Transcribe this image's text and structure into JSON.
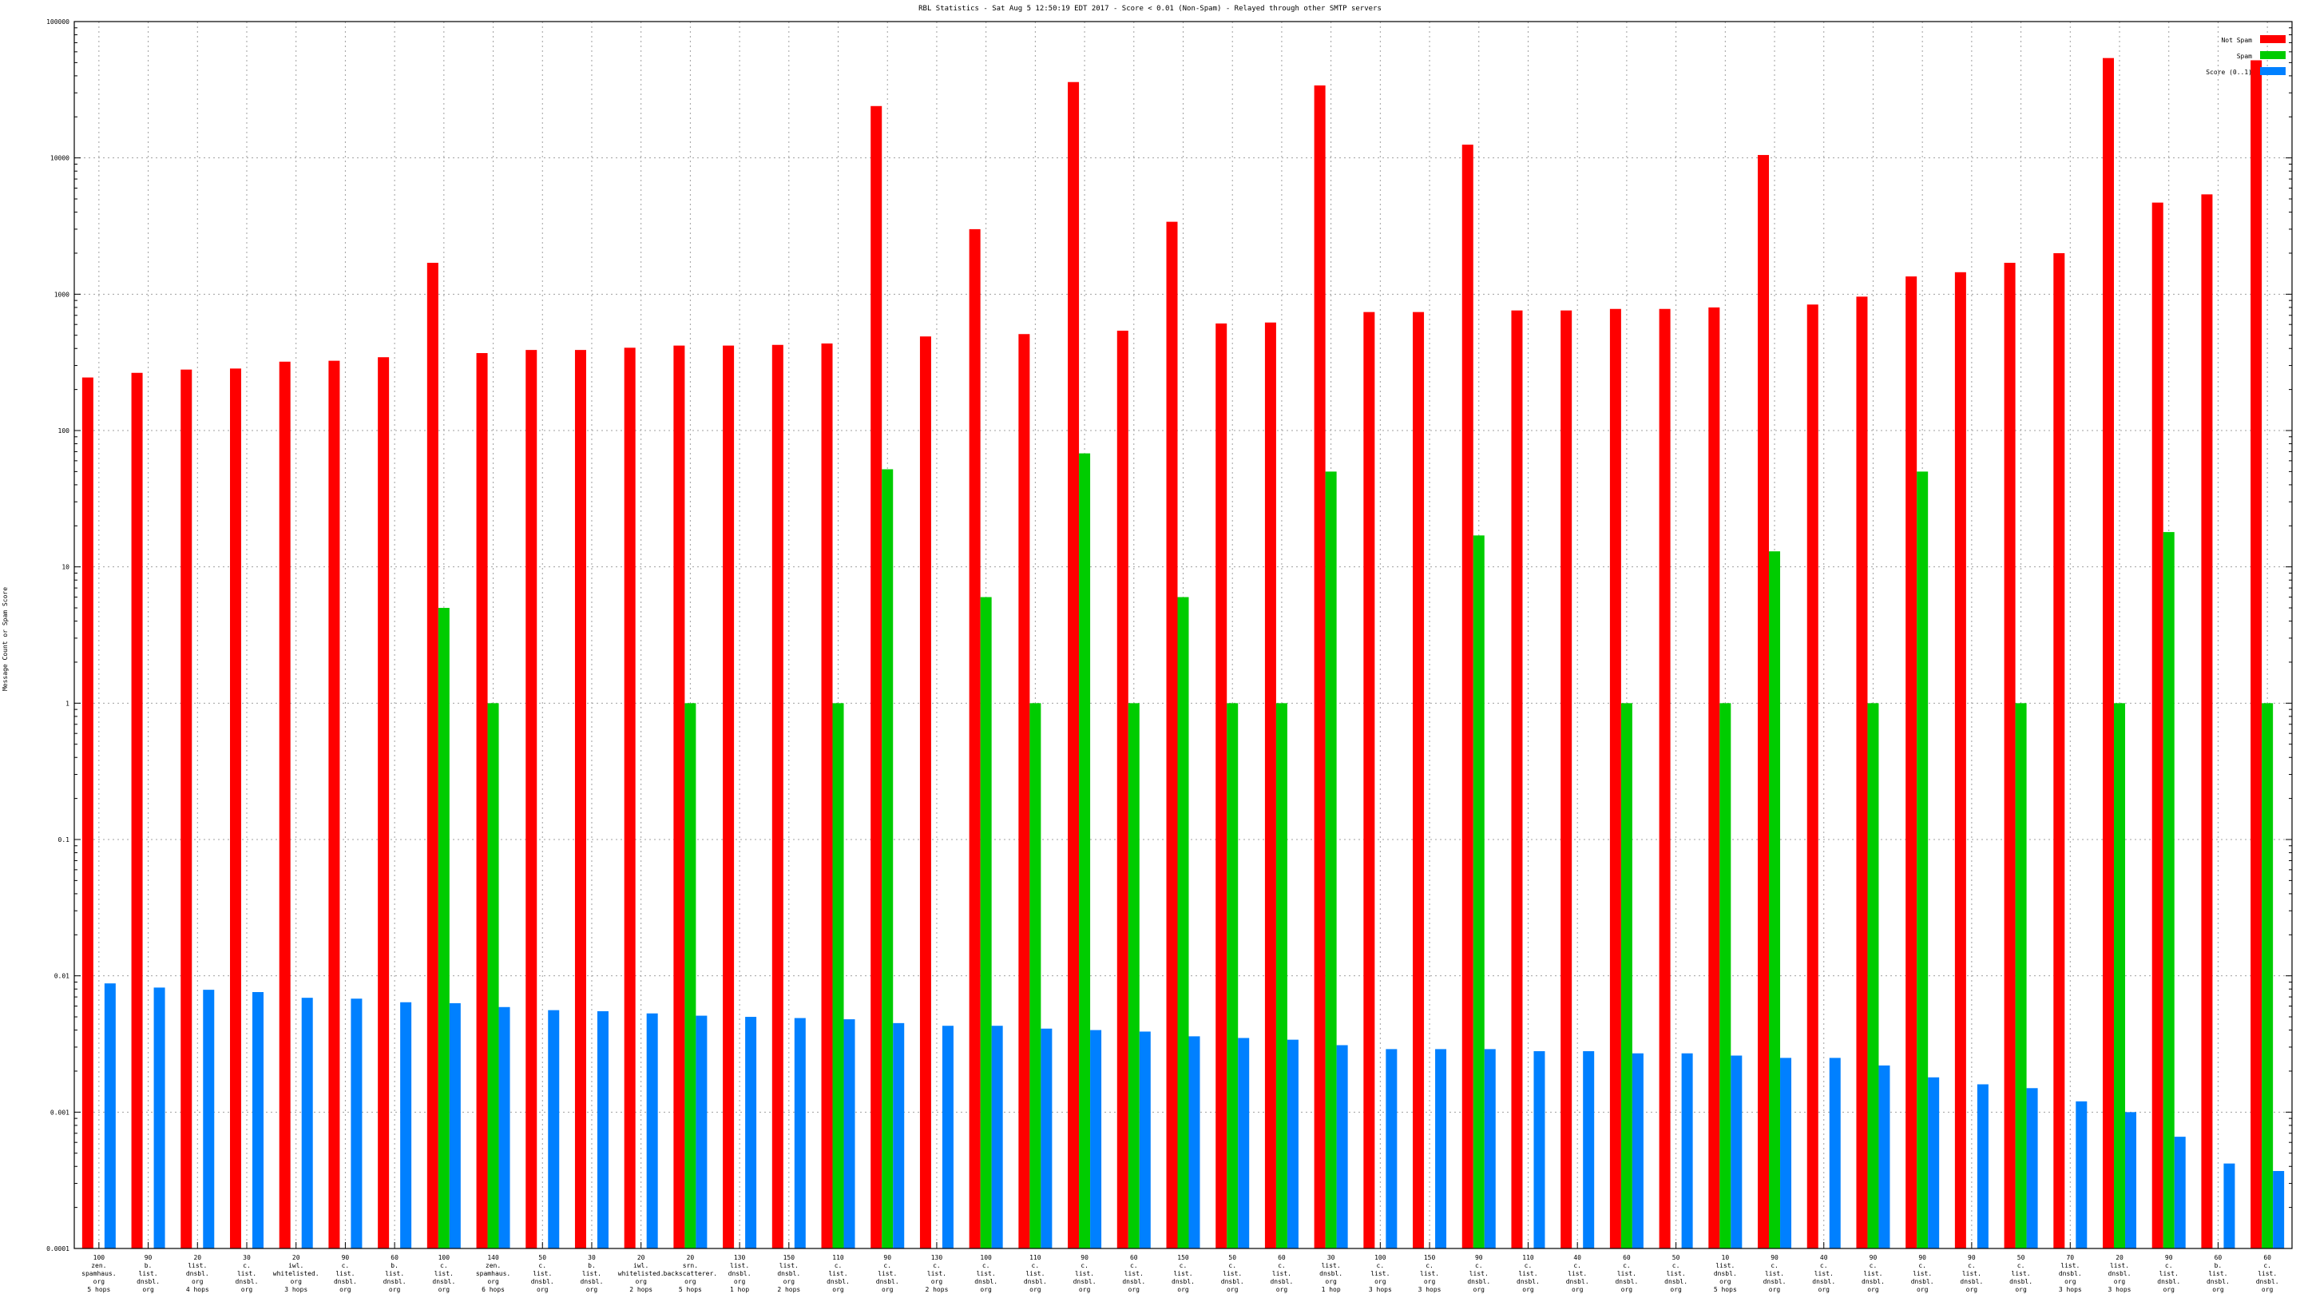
{
  "chart_data": {
    "type": "bar",
    "title": "RBL Statistics - Sat Aug  5 12:50:19 EDT 2017 - Score < 0.01 (Non-Spam) - Relayed through other SMTP servers",
    "ylabel": "Message Count or Spam Score",
    "xlabel": "",
    "yscale": "log",
    "ylim": [
      0.0001,
      100000
    ],
    "yticks": [
      "0.0001",
      "0.001",
      "0.01",
      "0.1",
      "1",
      "10",
      "100",
      "1000",
      "10000",
      "100000"
    ],
    "grid": true,
    "legend_position": "top-right",
    "categories": [
      [
        "100",
        "zen.",
        "spamhaus.",
        "org",
        "5 hops"
      ],
      [
        "90",
        "b.",
        "list.",
        "dnsbl.",
        "org",
        "4 hops"
      ],
      [
        "20",
        "list.",
        "dnsbl.",
        "org",
        "4 hops"
      ],
      [
        "30",
        "c.",
        "list.",
        "dnsbl.",
        "org",
        "3 hops"
      ],
      [
        "20",
        "iwl.",
        "whitelisted.",
        "org",
        "3 hops"
      ],
      [
        "90",
        "c.",
        "list.",
        "dnsbl.",
        "org",
        "3 hops"
      ],
      [
        "60",
        "b.",
        "list.",
        "dnsbl.",
        "org",
        "1 hop"
      ],
      [
        "100",
        "c.",
        "list.",
        "dnsbl.",
        "org",
        "2 hops"
      ],
      [
        "140",
        "zen.",
        "spamhaus.",
        "org",
        "6 hops"
      ],
      [
        "50",
        "c.",
        "list.",
        "dnsbl.",
        "org",
        "3 hops"
      ],
      [
        "30",
        "b.",
        "list.",
        "dnsbl.",
        "org",
        "3 hops"
      ],
      [
        "20",
        "iwl.",
        "whitelisted.",
        "org",
        "2 hops"
      ],
      [
        "20",
        "srn.",
        "backscatterer.",
        "org",
        "5 hops"
      ],
      [
        "130",
        "list.",
        "dnsbl.",
        "org",
        "1 hop"
      ],
      [
        "150",
        "list.",
        "dnsbl.",
        "org",
        "2 hops"
      ],
      [
        "110",
        "c.",
        "list.",
        "dnsbl.",
        "org",
        "3 hops"
      ],
      [
        "90",
        "c.",
        "list.",
        "dnsbl.",
        "org",
        "2 hops"
      ],
      [
        "130",
        "c.",
        "list.",
        "org",
        "2 hops"
      ],
      [
        "100",
        "c.",
        "list.",
        "dnsbl.",
        "org",
        "1 hop"
      ],
      [
        "110",
        "c.",
        "list.",
        "dnsbl.",
        "org",
        "3 hops"
      ],
      [
        "90",
        "c.",
        "list.",
        "dnsbl.",
        "org",
        "1 hop"
      ],
      [
        "60",
        "c.",
        "list.",
        "dnsbl.",
        "org",
        "2 hops"
      ],
      [
        "150",
        "c.",
        "list.",
        "dnsbl.",
        "org",
        "1 hop"
      ],
      [
        "50",
        "c.",
        "list.",
        "dnsbl.",
        "org",
        "5 hops"
      ],
      [
        "60",
        "c.",
        "list.",
        "dnsbl.",
        "org",
        "2 hops"
      ],
      [
        "30",
        "list.",
        "dnsbl.",
        "org",
        "1 hop"
      ],
      [
        "100",
        "c.",
        "list.",
        "org",
        "3 hops"
      ],
      [
        "150",
        "c.",
        "list.",
        "org",
        "3 hops"
      ],
      [
        "90",
        "c.",
        "list.",
        "dnsbl.",
        "org",
        "2 hops"
      ],
      [
        "110",
        "c.",
        "list.",
        "dnsbl.",
        "org",
        "1 hop"
      ],
      [
        "40",
        "c.",
        "list.",
        "dnsbl.",
        "org",
        "2 hops"
      ],
      [
        "60",
        "c.",
        "list.",
        "dnsbl.",
        "org",
        "5 hops"
      ],
      [
        "50",
        "c.",
        "list.",
        "dnsbl.",
        "org",
        "5 hops"
      ],
      [
        "10",
        "list.",
        "dnsbl.",
        "org",
        "5 hops"
      ],
      [
        "90",
        "c.",
        "list.",
        "dnsbl.",
        "org",
        "2 hops"
      ],
      [
        "40",
        "c.",
        "list.",
        "dnsbl.",
        "org",
        "2 hops"
      ],
      [
        "90",
        "c.",
        "list.",
        "dnsbl.",
        "org",
        "1 hop"
      ],
      [
        "90",
        "c.",
        "list.",
        "dnsbl.",
        "org",
        "1 hop"
      ],
      [
        "90",
        "c.",
        "list.",
        "dnsbl.",
        "org",
        "3 hops"
      ],
      [
        "50",
        "c.",
        "list.",
        "dnsbl.",
        "org",
        "5 hops"
      ],
      [
        "70",
        "list.",
        "dnsbl.",
        "org",
        "3 hops"
      ],
      [
        "20",
        "list.",
        "dnsbl.",
        "org",
        "3 hops"
      ],
      [
        "90",
        "c.",
        "list.",
        "dnsbl.",
        "org",
        "1 hop"
      ],
      [
        "60",
        "b.",
        "list.",
        "dnsbl.",
        "org",
        "1 hop"
      ],
      [
        "60",
        "c.",
        "list.",
        "dnsbl.",
        "org",
        "1 hop"
      ]
    ],
    "series": [
      {
        "name": "Not Spam",
        "color": "#ff0000",
        "values": [
          245,
          265,
          280,
          285,
          320,
          325,
          345,
          1700,
          370,
          390,
          390,
          405,
          420,
          420,
          425,
          435,
          24000,
          490,
          3000,
          510,
          36000,
          540,
          3400,
          610,
          620,
          34000,
          740,
          740,
          12500,
          760,
          760,
          780,
          780,
          800,
          10500,
          840,
          960,
          1350,
          1450,
          1700,
          2000,
          54000,
          4700,
          5400,
          52000
        ]
      },
      {
        "name": "Spam",
        "color": "#00cc00",
        "values": [
          null,
          null,
          null,
          null,
          null,
          null,
          null,
          5,
          1,
          null,
          null,
          null,
          1,
          null,
          null,
          1,
          52,
          null,
          6,
          1,
          68,
          1,
          6,
          1,
          1,
          50,
          null,
          null,
          17,
          null,
          null,
          1,
          null,
          1,
          13,
          null,
          1,
          50,
          null,
          1,
          null,
          1,
          18,
          null,
          1
        ]
      },
      {
        "name": "Score (0..1)",
        "color": "#0080ff",
        "values": [
          0.0088,
          0.0082,
          0.0079,
          0.0076,
          0.0069,
          0.0068,
          0.0064,
          0.0063,
          0.0059,
          0.0056,
          0.0055,
          0.0053,
          0.0051,
          0.005,
          0.0049,
          0.0048,
          0.0045,
          0.0043,
          0.0043,
          0.0041,
          0.004,
          0.0039,
          0.0036,
          0.0035,
          0.0034,
          0.0031,
          0.0029,
          0.0029,
          0.0029,
          0.0028,
          0.0028,
          0.0027,
          0.0027,
          0.0026,
          0.0025,
          0.0025,
          0.0022,
          0.0018,
          0.0016,
          0.0015,
          0.0012,
          0.001,
          0.00066,
          0.00042,
          0.00037
        ]
      }
    ]
  }
}
